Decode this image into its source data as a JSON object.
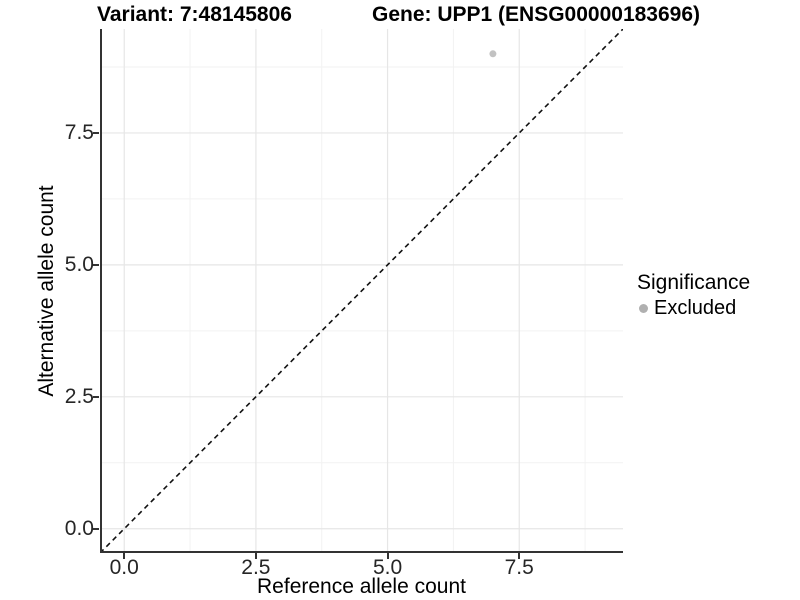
{
  "chart_data": {
    "type": "scatter",
    "titles": {
      "variant": "Variant: 7:48145806",
      "gene": "Gene: UPP1 (ENSG00000183696)"
    },
    "xlabel": "Reference allele count",
    "ylabel": "Alternative allele count",
    "xlim": [
      -0.46,
      9.47
    ],
    "ylim": [
      -0.46,
      9.47
    ],
    "x_ticks": {
      "values": [
        0,
        2.5,
        5,
        7.5
      ],
      "labels": [
        "0.0",
        "2.5",
        "5.0",
        "7.5"
      ]
    },
    "y_ticks": {
      "values": [
        0,
        2.5,
        5,
        7.5
      ],
      "labels": [
        "0.0",
        "2.5",
        "5.0",
        "7.5"
      ]
    },
    "x_minor_ticks": [
      1.25,
      3.75,
      6.25,
      8.75
    ],
    "y_minor_ticks": [
      1.25,
      3.75,
      6.25,
      8.75
    ],
    "grid": {
      "major": true,
      "minor": true
    },
    "reference_line": {
      "type": "identity",
      "slope": 1,
      "intercept": 0,
      "style": "dashed",
      "color": "#111111"
    },
    "points": [
      {
        "x": 7,
        "y": 9,
        "significance": "Excluded",
        "color": "#c2c2c2",
        "radius": 3.5
      }
    ],
    "legend": {
      "title": "Significance",
      "position": "right",
      "entries": [
        {
          "label": "Excluded",
          "marker": "circle-icon",
          "color": "#b0b0b0"
        }
      ]
    },
    "colors": {
      "background": "#ffffff",
      "grid_major": "#e6e6e6",
      "grid_minor": "#f2f2f2",
      "axis_line": "#333333",
      "tick_mark": "#333333",
      "tick_text": "#262626",
      "title_text": "#000000"
    }
  }
}
